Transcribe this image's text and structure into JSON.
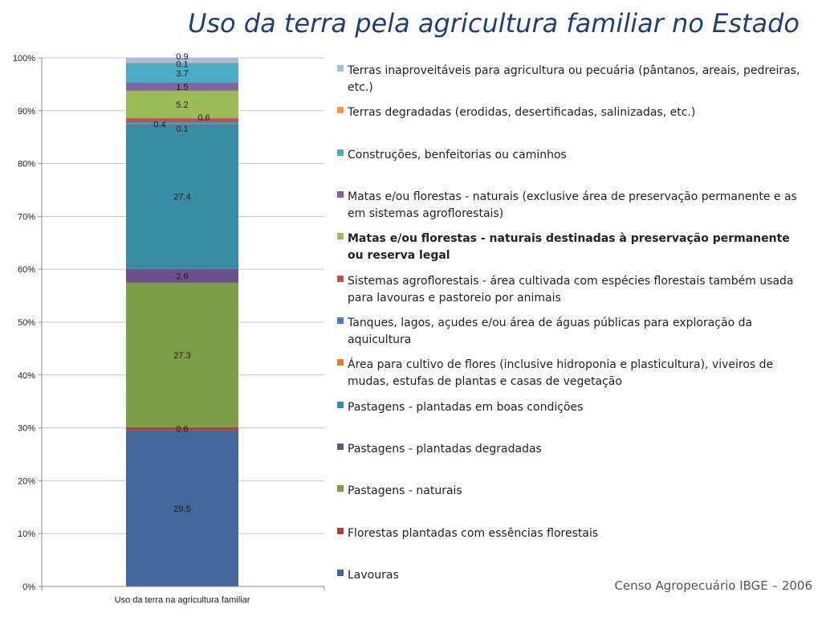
{
  "title": "Uso da terra pela agricultura familiar no Estado",
  "source": "Censo Agropecuário IBGE – 2006",
  "chart_data": {
    "type": "bar",
    "stacked": true,
    "percent_axis": true,
    "categories": [
      "Uso da terra na agricultura familiar"
    ],
    "ylim": [
      0,
      100
    ],
    "yticks": [
      "0%",
      "10%",
      "20%",
      "30%",
      "40%",
      "50%",
      "60%",
      "70%",
      "80%",
      "90%",
      "100%"
    ],
    "series": [
      {
        "name": "Lavouras",
        "value": 29.5,
        "label": "29.5",
        "color": "#44679a"
      },
      {
        "name": "Florestas plantadas com essências florestais",
        "value": 0.6,
        "label": "0.6",
        "color": "#a84240"
      },
      {
        "name": "Pastagens - naturais",
        "value": 27.3,
        "label": "27.3",
        "color": "#7e9c45"
      },
      {
        "name": "Pastagens - plantadas degradadas",
        "value": 2.6,
        "label": "2.6",
        "color": "#69518a"
      },
      {
        "name": "Pastagens - plantadas em boas condições",
        "value": 27.4,
        "label": "27.4",
        "color": "#3a8ca6"
      },
      {
        "name": "Área para cultivo de flores (inclusive hidroponia e plasticultura), viveiros de mudas, estufas de plantas e casas de vegetação",
        "value": 0.1,
        "label": "0.1",
        "color": "#e07e30"
      },
      {
        "name": "Tanques, lagos, açudes e/ou área de águas públicas para exploração da aquicultura",
        "value": 0.4,
        "label": "0.4",
        "color": "#4a7fbd"
      },
      {
        "name": "Sistemas agroflorestais - área cultivada com espécies florestais também usada para lavouras e pastoreio por animais",
        "value": 0.6,
        "label": "0.6",
        "color": "#c4504e"
      },
      {
        "name": "Matas e/ou florestas - naturais destinadas à preservação permanente ou reserva legal",
        "value": 5.2,
        "label": "5.2",
        "color": "#9dbb58",
        "bold": true
      },
      {
        "name": "Matas e/ou florestas - naturais (exclusive área de preservação permanente e as em sistemas agroflorestais)",
        "value": 1.5,
        "label": "1.5",
        "color": "#8066a2"
      },
      {
        "name": "Construções, benfeitorias ou caminhos",
        "value": 3.7,
        "label": "3.7",
        "color": "#4bacc6"
      },
      {
        "name": "Terras degradadas (erodidas, desertificadas, salinizadas, etc.)",
        "value": 0.1,
        "label": "0.1",
        "color": "#f79646"
      },
      {
        "name": "Terras inaproveitáveis para agricultura ou pecuária (pântanos, areais, pedreiras, etc.)",
        "value": 0.9,
        "label": "0.9",
        "color": "#a9b8dc"
      }
    ]
  }
}
